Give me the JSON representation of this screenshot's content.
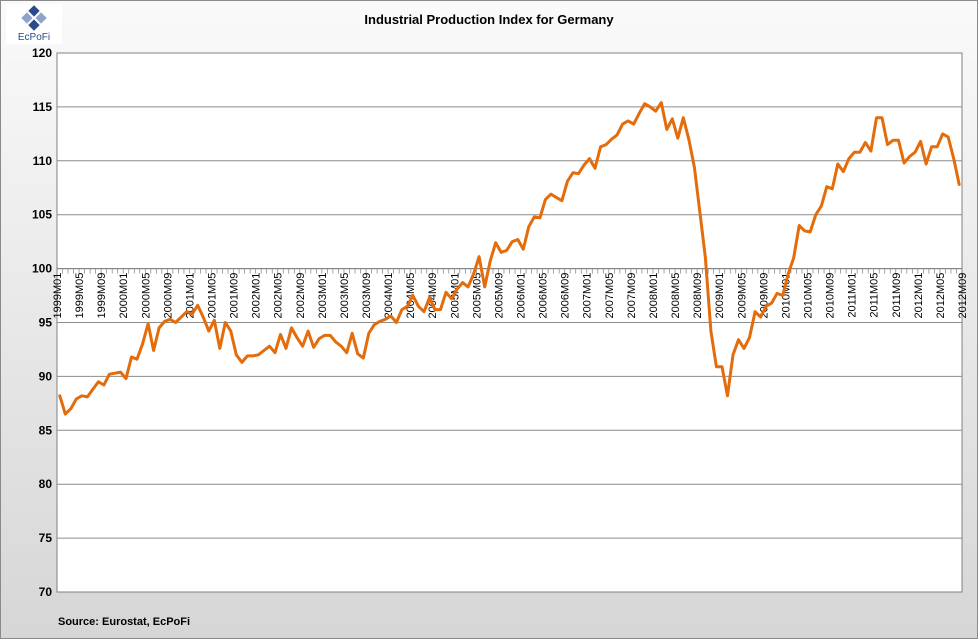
{
  "logo": {
    "text": "EcPoFi",
    "colors": {
      "dark": "#2a4a8c",
      "light": "#8fa3cf"
    }
  },
  "chart_data": {
    "type": "line",
    "title": "Industrial Production Index for Germany",
    "source": "Source: Eurostat,  EcPoFi",
    "xlabel": "",
    "ylabel": "",
    "ylim": [
      70,
      120
    ],
    "yticks": [
      70,
      75,
      80,
      85,
      90,
      95,
      100,
      105,
      110,
      115,
      120
    ],
    "grid": true,
    "legend": "none",
    "x_tick_labels": [
      "1999M01",
      "1999M05",
      "1999M09",
      "2000M01",
      "2000M05",
      "2000M09",
      "2001M01",
      "2001M05",
      "2001M09",
      "2002M01",
      "2002M05",
      "2002M09",
      "2003M01",
      "2003M05",
      "2003M09",
      "2004M01",
      "2004M05",
      "2004M09",
      "2005M01",
      "2005M05",
      "2005M09",
      "2006M01",
      "2006M05",
      "2006M09",
      "2007M01",
      "2007M05",
      "2007M09",
      "2008M01",
      "2008M05",
      "2008M09",
      "2009M01",
      "2009M05",
      "2009M09",
      "2010M01",
      "2010M05",
      "2010M09",
      "2011M01",
      "2011M05",
      "2011M09",
      "2012M01",
      "2012M05",
      "2012M09"
    ],
    "line_color": "#e46c0a",
    "series": [
      {
        "values": [
          88.2,
          86.5,
          87.0,
          87.9,
          88.2,
          88.1,
          88.8,
          89.5,
          89.2,
          90.2,
          90.3,
          90.4,
          89.8,
          91.8,
          91.6,
          93.0,
          94.9,
          92.4,
          94.5,
          95.1,
          95.3,
          95.0,
          95.5,
          96.0,
          95.8,
          96.6,
          95.5,
          94.2,
          95.2,
          92.6,
          95.0,
          94.2,
          92.0,
          91.3,
          91.9,
          91.9,
          92.0,
          92.4,
          92.8,
          92.2,
          93.9,
          92.6,
          94.5,
          93.6,
          92.8,
          94.2,
          92.7,
          93.5,
          93.8,
          93.8,
          93.2,
          92.8,
          92.2,
          94.0,
          92.1,
          91.7,
          94.0,
          94.8,
          95.1,
          95.3,
          95.6,
          95.0,
          96.2,
          96.5,
          97.5,
          96.5,
          96.0,
          97.3,
          96.2,
          96.2,
          97.8,
          97.2,
          98.1,
          98.7,
          98.3,
          99.5,
          101.1,
          98.3,
          100.7,
          102.4,
          101.5,
          101.7,
          102.5,
          102.7,
          101.8,
          103.9,
          104.8,
          104.7,
          106.4,
          106.9,
          106.6,
          106.3,
          108.1,
          108.9,
          108.8,
          109.6,
          110.2,
          109.3,
          111.3,
          111.5,
          112.0,
          112.4,
          113.4,
          113.7,
          113.4,
          114.4,
          115.3,
          115.0,
          114.6,
          115.4,
          112.9,
          113.9,
          112.1,
          114.0,
          112.0,
          109.4,
          105.2,
          101.0,
          94.2,
          90.9,
          90.9,
          88.2,
          92.0,
          93.4,
          92.6,
          93.6,
          96.0,
          95.5,
          96.5,
          96.8,
          97.7,
          97.5,
          99.5,
          101.0,
          104.0,
          103.5,
          103.4,
          105.0,
          105.8,
          107.6,
          107.4,
          109.7,
          109.0,
          110.2,
          110.8,
          110.8,
          111.7,
          110.9,
          114.0,
          114.0,
          111.5,
          111.9,
          111.9,
          109.8,
          110.4,
          110.8,
          111.8,
          109.7,
          111.3,
          111.3,
          112.5,
          112.2,
          110.2,
          107.8
        ]
      }
    ]
  }
}
